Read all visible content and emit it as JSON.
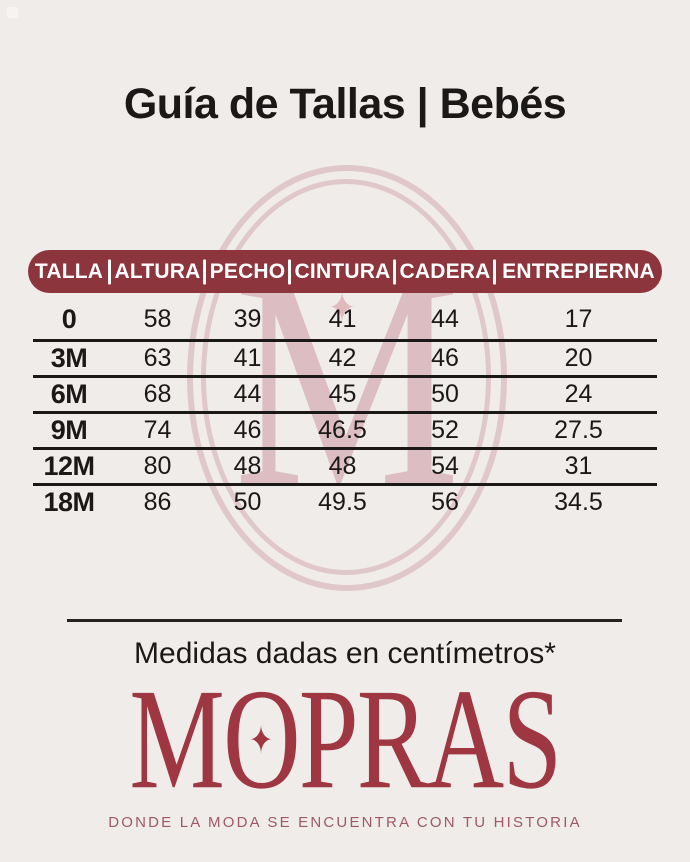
{
  "title": "Guía de Tallas | Bebés",
  "table": {
    "columns": [
      "TALLA",
      "ALTURA",
      "PECHO",
      "CINTURA",
      "CADERA",
      "ENTREPIERNA"
    ],
    "rows": [
      [
        "0",
        "58",
        "39",
        "41",
        "44",
        "17"
      ],
      [
        "3M",
        "63",
        "41",
        "42",
        "46",
        "20"
      ],
      [
        "6M",
        "68",
        "44",
        "45",
        "50",
        "24"
      ],
      [
        "9M",
        "74",
        "46",
        "46.5",
        "52",
        "27.5"
      ],
      [
        "12M",
        "80",
        "48",
        "48",
        "54",
        "31"
      ],
      [
        "18M",
        "86",
        "50",
        "49.5",
        "56",
        "34.5"
      ]
    ]
  },
  "note": "Medidas dadas en centímetros*",
  "brand": {
    "name": "MOPRAS",
    "logo_letters": [
      "M",
      "O",
      "P",
      "R",
      "A",
      "S"
    ],
    "star": "✦",
    "tagline": "DONDE LA MODA SE ENCUENTRA CON TU HISTORIA"
  },
  "watermark": {
    "letter": "M",
    "star": "✦"
  },
  "colors": {
    "bg": "#efecea",
    "maroon": "#8d353d",
    "ink": "#1b1818",
    "rose": "#dcbdc1",
    "rose-ring": "#e0c7ca",
    "rose-star": "#e2b9bf",
    "brand-red": "#9e3742",
    "mauve": "#9d5a64"
  }
}
